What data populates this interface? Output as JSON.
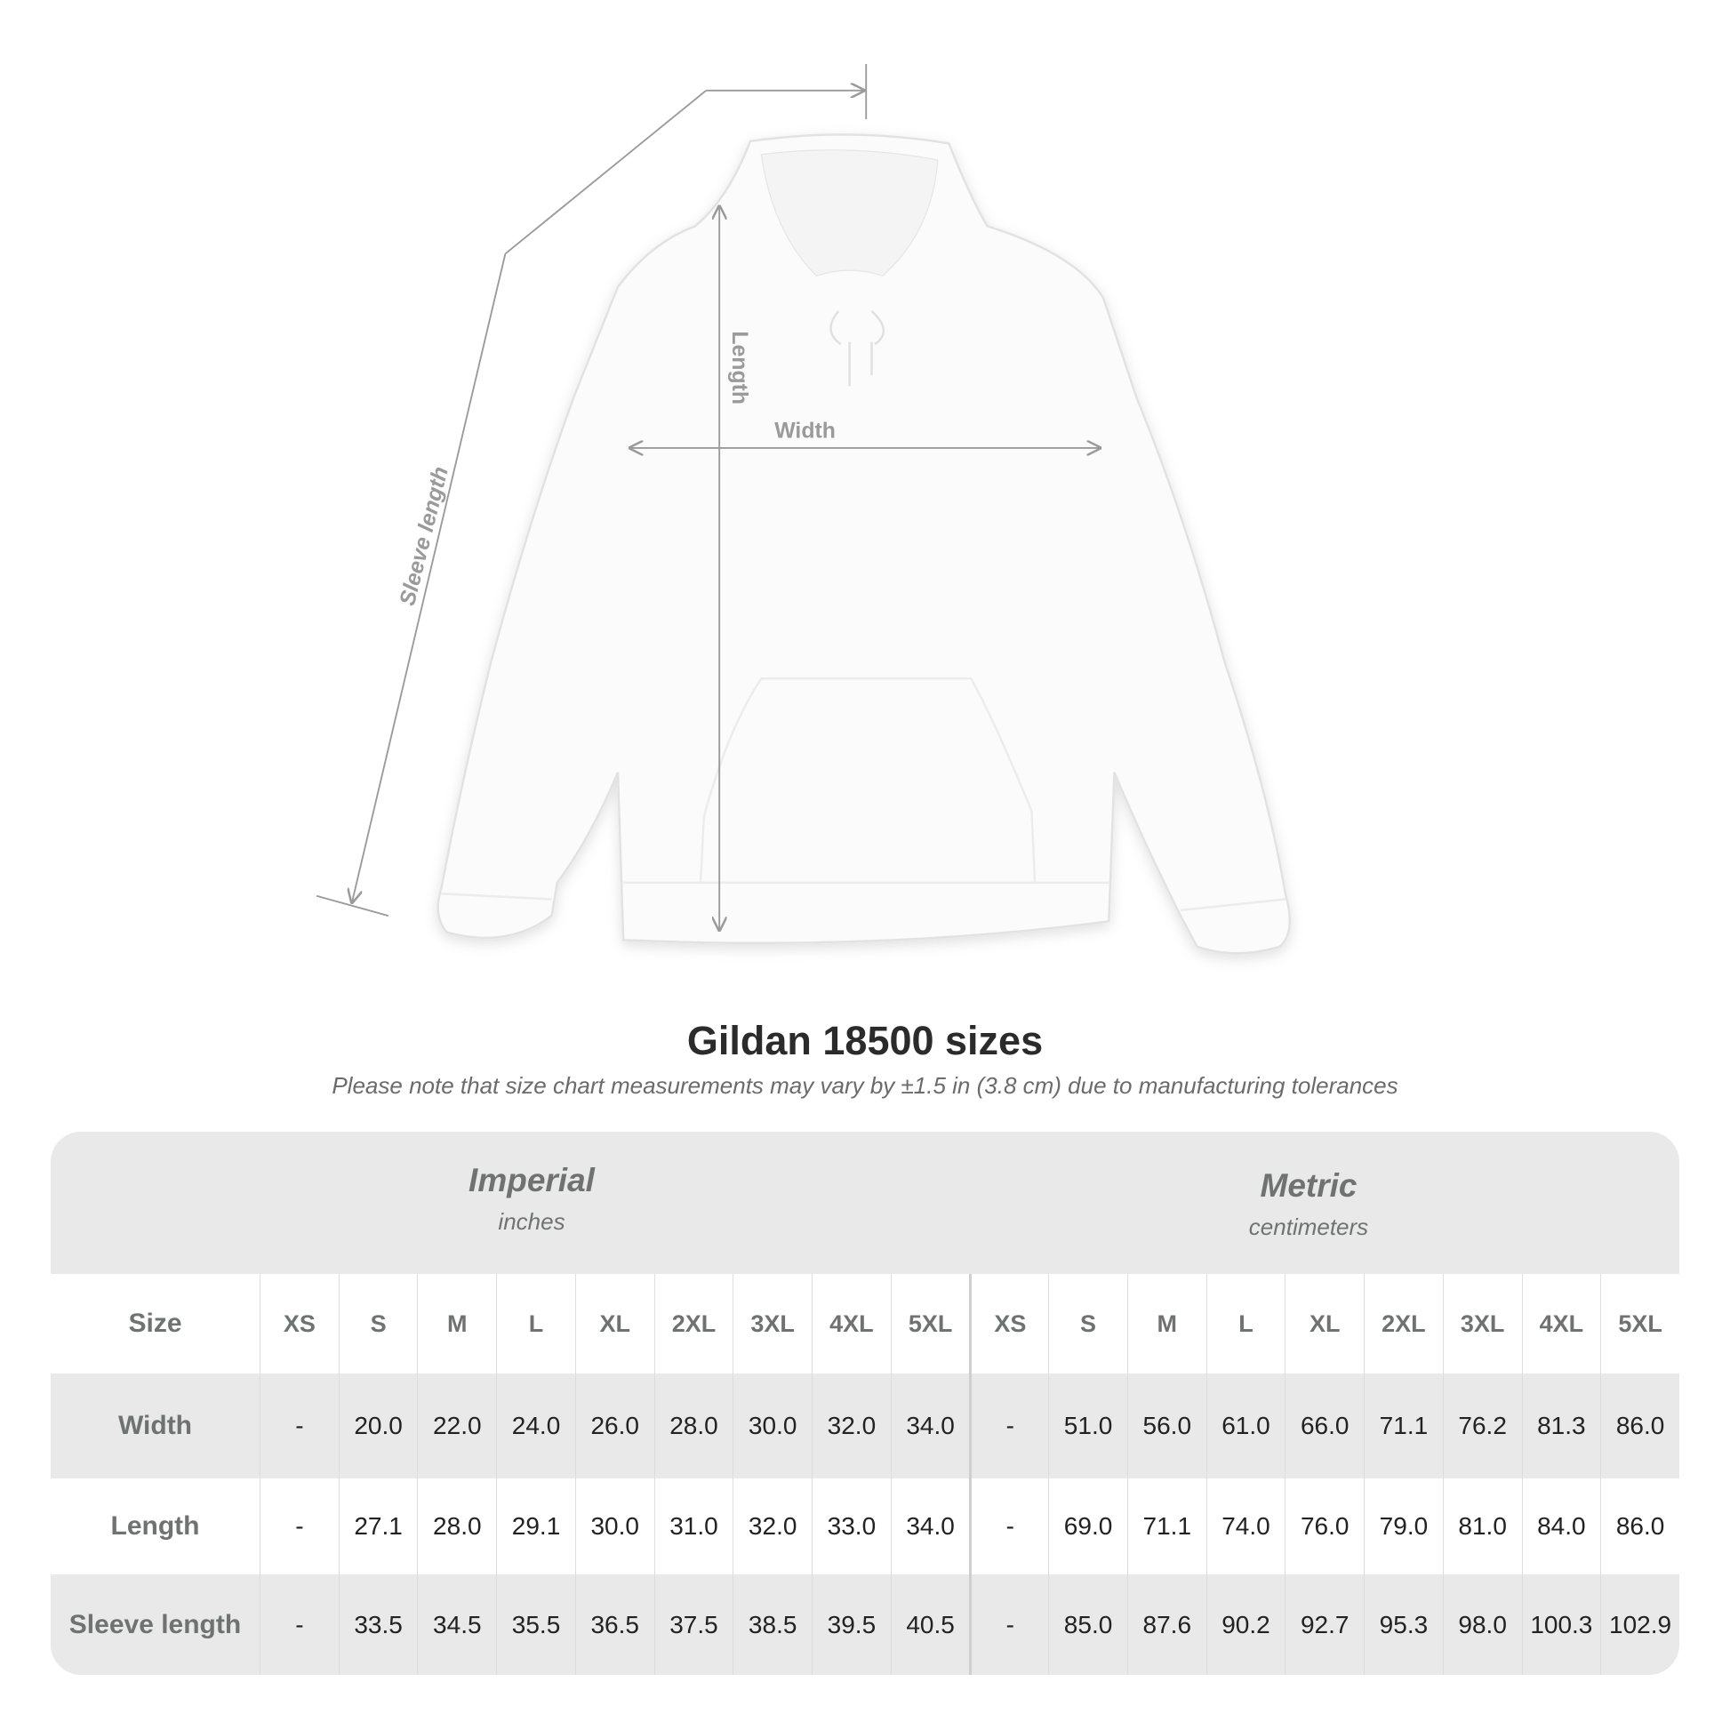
{
  "diagram": {
    "labels": {
      "length": "Length",
      "width": "Width",
      "sleeve_length": "Sleeve length"
    },
    "garment": "hoodie",
    "line_color": "#9a9a9a"
  },
  "title": "Gildan 18500 sizes",
  "subtitle": "Please note that size chart measurements may vary by ±1.5 in (3.8 cm) due to manufacturing tolerances",
  "table": {
    "imperial": {
      "name": "Imperial",
      "unit": "inches"
    },
    "metric": {
      "name": "Metric",
      "unit": "centimeters"
    },
    "size_label": "Size",
    "sizes": [
      "XS",
      "S",
      "M",
      "L",
      "XL",
      "2XL",
      "3XL",
      "4XL",
      "5XL"
    ],
    "rows": [
      {
        "label": "Width",
        "imperial": [
          "-",
          "20.0",
          "22.0",
          "24.0",
          "26.0",
          "28.0",
          "30.0",
          "32.0",
          "34.0"
        ],
        "metric": [
          "-",
          "51.0",
          "56.0",
          "61.0",
          "66.0",
          "71.1",
          "76.2",
          "81.3",
          "86.0"
        ]
      },
      {
        "label": "Length",
        "imperial": [
          "-",
          "27.1",
          "28.0",
          "29.1",
          "30.0",
          "31.0",
          "32.0",
          "33.0",
          "34.0"
        ],
        "metric": [
          "-",
          "69.0",
          "71.1",
          "74.0",
          "76.0",
          "79.0",
          "81.0",
          "84.0",
          "86.0"
        ]
      },
      {
        "label": "Sleeve length",
        "imperial": [
          "-",
          "33.5",
          "34.5",
          "35.5",
          "36.5",
          "37.5",
          "38.5",
          "39.5",
          "40.5"
        ],
        "metric": [
          "-",
          "85.0",
          "87.6",
          "90.2",
          "92.7",
          "95.3",
          "98.0",
          "100.3",
          "102.9"
        ]
      }
    ]
  }
}
